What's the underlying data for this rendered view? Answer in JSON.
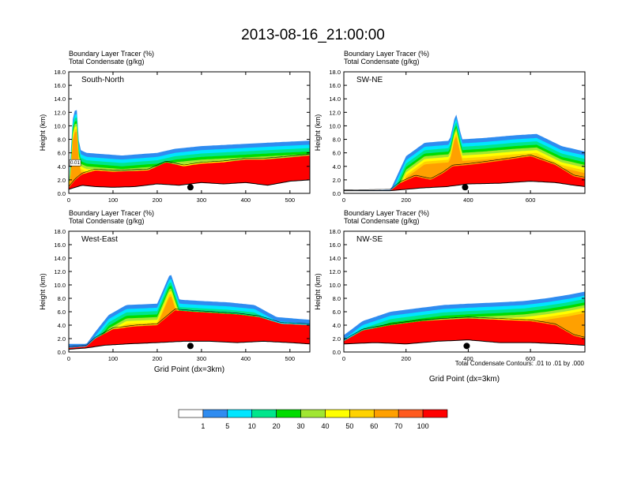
{
  "main_title": "2013-08-16_21:00:00",
  "panel_header": {
    "line1": "Boundary Layer Tracer   (%)",
    "line2": "Total Condensate   (g/kg)"
  },
  "footnote": "Total Condensate Contours: .01 to .01 by .000",
  "colorbar": {
    "colors": [
      "#ffffff",
      "#2f8cf0",
      "#00e6ff",
      "#00e68c",
      "#00dc00",
      "#a0e632",
      "#ffff00",
      "#ffd200",
      "#ffa000",
      "#ff5a1e",
      "#ff0000"
    ],
    "tick_labels": [
      "1",
      "5",
      "10",
      "20",
      "30",
      "40",
      "50",
      "60",
      "70",
      "100"
    ]
  },
  "chart_data": [
    {
      "type": "heatmap",
      "panel": "South-North",
      "title": "South-North",
      "xlabel": "",
      "ylabel": "Height (km)",
      "xlim": [
        0,
        545
      ],
      "ylim": [
        0,
        18
      ],
      "xticks": [
        "0",
        "100",
        "200",
        "300",
        "400",
        "500"
      ],
      "yticks": [
        "0.0",
        "2.0",
        "4.0",
        "6.0",
        "8.0",
        "10.0",
        "12.0",
        "14.0",
        "16.0",
        "18.0"
      ],
      "contour_label": "0.01",
      "marker_x": 275,
      "top_profile": [
        [
          0,
          1.0
        ],
        [
          10,
          12.0
        ],
        [
          18,
          12.5
        ],
        [
          24,
          6.5
        ],
        [
          40,
          6.0
        ],
        [
          80,
          5.8
        ],
        [
          120,
          5.6
        ],
        [
          160,
          5.8
        ],
        [
          200,
          6.0
        ],
        [
          240,
          6.6
        ],
        [
          300,
          7.0
        ],
        [
          360,
          7.2
        ],
        [
          420,
          7.4
        ],
        [
          480,
          7.6
        ],
        [
          545,
          7.8
        ]
      ],
      "red_profile": [
        [
          0,
          0.8
        ],
        [
          15,
          2.0
        ],
        [
          30,
          2.8
        ],
        [
          60,
          3.4
        ],
        [
          100,
          3.2
        ],
        [
          140,
          3.3
        ],
        [
          180,
          3.4
        ],
        [
          220,
          4.6
        ],
        [
          260,
          4.0
        ],
        [
          300,
          4.4
        ],
        [
          350,
          4.6
        ],
        [
          400,
          5.0
        ],
        [
          440,
          5.0
        ],
        [
          480,
          5.2
        ],
        [
          545,
          5.6
        ]
      ],
      "terrain": [
        [
          0,
          0.6
        ],
        [
          30,
          1.2
        ],
        [
          60,
          1.0
        ],
        [
          100,
          0.9
        ],
        [
          150,
          1.0
        ],
        [
          200,
          1.4
        ],
        [
          250,
          1.2
        ],
        [
          300,
          1.6
        ],
        [
          350,
          1.4
        ],
        [
          400,
          1.6
        ],
        [
          450,
          1.2
        ],
        [
          500,
          1.8
        ],
        [
          545,
          2.0
        ]
      ]
    },
    {
      "type": "heatmap",
      "panel": "SW-NE",
      "title": "SW-NE",
      "xlabel": "",
      "ylabel": "Height (km)",
      "xlim": [
        0,
        775
      ],
      "ylim": [
        0,
        18
      ],
      "xticks": [
        "0",
        "200",
        "400",
        "600"
      ],
      "yticks": [
        "0.0",
        "2.0",
        "4.0",
        "6.0",
        "8.0",
        "10.0",
        "12.0",
        "14.0",
        "16.0",
        "18.0"
      ],
      "marker_x": 390,
      "top_profile": [
        [
          0,
          0.4
        ],
        [
          150,
          0.5
        ],
        [
          200,
          5.5
        ],
        [
          260,
          7.5
        ],
        [
          340,
          7.8
        ],
        [
          360,
          12.0
        ],
        [
          380,
          8.0
        ],
        [
          450,
          8.2
        ],
        [
          550,
          8.6
        ],
        [
          620,
          8.8
        ],
        [
          700,
          7.0
        ],
        [
          775,
          6.2
        ]
      ],
      "red_profile": [
        [
          0,
          0.3
        ],
        [
          150,
          0.4
        ],
        [
          180,
          1.5
        ],
        [
          230,
          2.5
        ],
        [
          280,
          2.0
        ],
        [
          320,
          3.0
        ],
        [
          350,
          4.0
        ],
        [
          400,
          4.2
        ],
        [
          500,
          4.8
        ],
        [
          600,
          5.5
        ],
        [
          680,
          4.2
        ],
        [
          740,
          2.5
        ],
        [
          775,
          2.2
        ]
      ],
      "terrain": [
        [
          0,
          0.4
        ],
        [
          150,
          0.4
        ],
        [
          250,
          0.8
        ],
        [
          330,
          1.0
        ],
        [
          400,
          1.4
        ],
        [
          500,
          1.5
        ],
        [
          600,
          1.8
        ],
        [
          680,
          1.6
        ],
        [
          740,
          1.2
        ],
        [
          775,
          1.0
        ]
      ]
    },
    {
      "type": "heatmap",
      "panel": "West-East",
      "title": "West-East",
      "xlabel": "Grid Point (dx=3km)",
      "ylabel": "Height (km)",
      "xlim": [
        0,
        545
      ],
      "ylim": [
        0,
        18
      ],
      "xticks": [
        "0",
        "100",
        "200",
        "300",
        "400",
        "500"
      ],
      "yticks": [
        "0.0",
        "2.0",
        "4.0",
        "6.0",
        "8.0",
        "10.0",
        "12.0",
        "14.0",
        "16.0",
        "18.0"
      ],
      "marker_x": 275,
      "top_profile": [
        [
          0,
          1.2
        ],
        [
          40,
          1.2
        ],
        [
          60,
          3.0
        ],
        [
          90,
          5.5
        ],
        [
          130,
          7.0
        ],
        [
          200,
          7.2
        ],
        [
          230,
          11.8
        ],
        [
          250,
          7.8
        ],
        [
          300,
          7.6
        ],
        [
          360,
          7.4
        ],
        [
          420,
          7.0
        ],
        [
          470,
          5.2
        ],
        [
          545,
          4.8
        ]
      ],
      "red_profile": [
        [
          0,
          0.6
        ],
        [
          40,
          0.8
        ],
        [
          60,
          2.0
        ],
        [
          100,
          3.4
        ],
        [
          150,
          3.8
        ],
        [
          200,
          4.0
        ],
        [
          240,
          6.2
        ],
        [
          280,
          6.0
        ],
        [
          330,
          5.8
        ],
        [
          380,
          5.6
        ],
        [
          430,
          5.2
        ],
        [
          480,
          4.2
        ],
        [
          545,
          4.0
        ]
      ],
      "terrain": [
        [
          0,
          0.4
        ],
        [
          40,
          0.6
        ],
        [
          80,
          1.0
        ],
        [
          130,
          1.2
        ],
        [
          200,
          1.4
        ],
        [
          260,
          1.6
        ],
        [
          320,
          1.6
        ],
        [
          380,
          1.4
        ],
        [
          440,
          1.6
        ],
        [
          500,
          1.4
        ],
        [
          545,
          1.2
        ]
      ]
    },
    {
      "type": "heatmap",
      "panel": "NW-SE",
      "title": "NW-SE",
      "xlabel": "Grid Point (dx=3km)",
      "ylabel": "Height (km)",
      "xlim": [
        0,
        775
      ],
      "ylim": [
        0,
        18
      ],
      "xticks": [
        "0",
        "200",
        "400",
        "600"
      ],
      "yticks": [
        "0.0",
        "2.0",
        "4.0",
        "6.0",
        "8.0",
        "10.0",
        "12.0",
        "14.0",
        "16.0",
        "18.0"
      ],
      "marker_x": 395,
      "top_profile": [
        [
          0,
          2.5
        ],
        [
          60,
          4.6
        ],
        [
          150,
          6.0
        ],
        [
          250,
          6.6
        ],
        [
          320,
          7.0
        ],
        [
          400,
          7.2
        ],
        [
          500,
          7.4
        ],
        [
          580,
          7.6
        ],
        [
          650,
          8.0
        ],
        [
          720,
          8.5
        ],
        [
          775,
          9.0
        ]
      ],
      "red_profile": [
        [
          0,
          1.6
        ],
        [
          60,
          3.2
        ],
        [
          150,
          4.0
        ],
        [
          250,
          4.6
        ],
        [
          320,
          4.8
        ],
        [
          400,
          5.0
        ],
        [
          500,
          4.8
        ],
        [
          600,
          4.6
        ],
        [
          680,
          4.0
        ],
        [
          740,
          2.4
        ],
        [
          775,
          2.0
        ]
      ],
      "terrain": [
        [
          0,
          1.2
        ],
        [
          100,
          1.4
        ],
        [
          200,
          1.2
        ],
        [
          300,
          1.6
        ],
        [
          400,
          1.8
        ],
        [
          500,
          1.4
        ],
        [
          600,
          1.4
        ],
        [
          700,
          1.2
        ],
        [
          775,
          1.0
        ]
      ]
    }
  ]
}
